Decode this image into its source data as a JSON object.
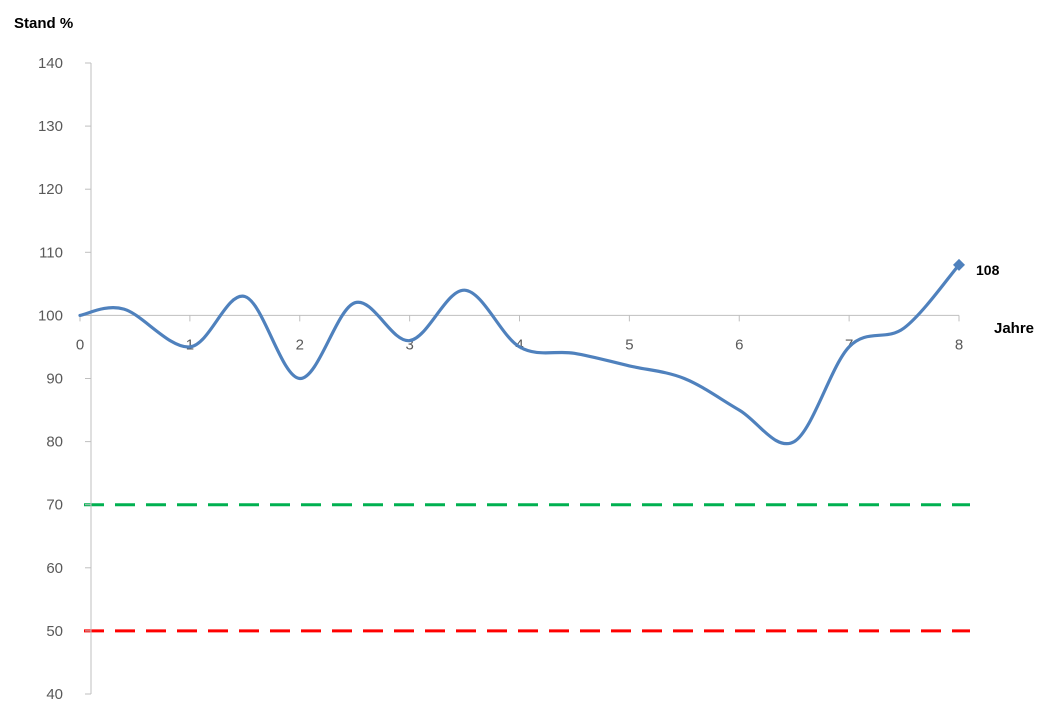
{
  "chart_data": {
    "type": "line",
    "ylabel": "Stand %",
    "xlabel": "Jahre",
    "xlim": [
      0,
      8
    ],
    "ylim": [
      40,
      140
    ],
    "x_ticks": [
      "0",
      "1",
      "2",
      "3",
      "4",
      "5",
      "6",
      "7",
      "8"
    ],
    "y_ticks": [
      "140",
      "130",
      "120",
      "110",
      "100",
      "90",
      "80",
      "70",
      "60",
      "50",
      "40"
    ],
    "x_axis_crosses_y": 100,
    "grid": false,
    "legend": "none",
    "series": [
      {
        "color": "#4f81bd",
        "smooth": true,
        "x": [
          0,
          0.4,
          1,
          1.5,
          2,
          2.5,
          3,
          3.5,
          4,
          4.5,
          5,
          5.5,
          6,
          6.5,
          7,
          7.5,
          8
        ],
        "y": [
          100,
          101,
          95,
          103,
          90,
          102,
          96,
          104,
          95,
          94,
          92,
          90,
          85,
          80,
          95,
          98,
          108
        ],
        "end_marker": "diamond",
        "end_label": "108"
      }
    ],
    "reference_lines": [
      {
        "y": 70,
        "color": "#00b050",
        "style": "dashed"
      },
      {
        "y": 50,
        "color": "#ff0000",
        "style": "dashed"
      }
    ]
  }
}
